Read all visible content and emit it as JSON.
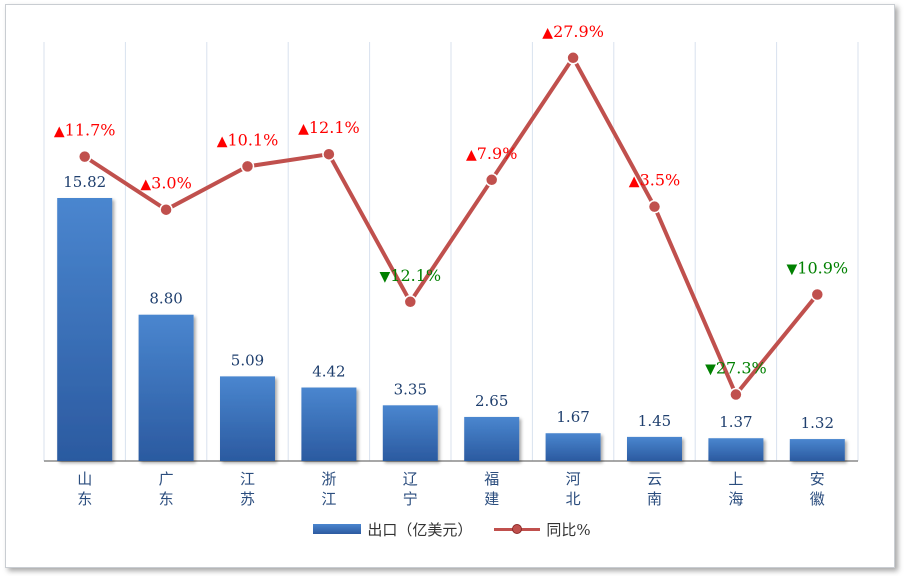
{
  "chart_data": {
    "type": "bar",
    "categories": [
      "山东",
      "广东",
      "江苏",
      "浙江",
      "辽宁",
      "福建",
      "河北",
      "云南",
      "上海",
      "安徽"
    ],
    "series": [
      {
        "name": "出口（亿美元）",
        "type": "bar",
        "values": [
          15.82,
          8.8,
          5.09,
          4.42,
          3.35,
          2.65,
          1.67,
          1.45,
          1.37,
          1.32
        ],
        "labels": [
          "15.82",
          "8.80",
          "5.09",
          "4.42",
          "3.35",
          "2.65",
          "1.67",
          "1.45",
          "1.37",
          "1.32"
        ]
      },
      {
        "name": "同比%",
        "type": "line",
        "values": [
          11.7,
          3.0,
          10.1,
          12.1,
          -12.1,
          7.9,
          27.9,
          3.5,
          -27.3,
          -10.9
        ],
        "labels": [
          "11.7%",
          "3.0%",
          "10.1%",
          "12.1%",
          "12.1%",
          "7.9%",
          "27.9%",
          "3.5%",
          "27.3%",
          "10.9%"
        ]
      }
    ],
    "bar_ylim": [
      0,
      16.8
    ],
    "line_ylim": [
      -30,
      30
    ],
    "grid": "vertical",
    "legend_position": "bottom",
    "colors": {
      "bar": "#3a74c0",
      "line": "#c0504d",
      "up": "#ff0000",
      "down": "#008000"
    }
  },
  "legend": {
    "bar_label": "出口（亿美元）",
    "line_label": "同比%"
  }
}
